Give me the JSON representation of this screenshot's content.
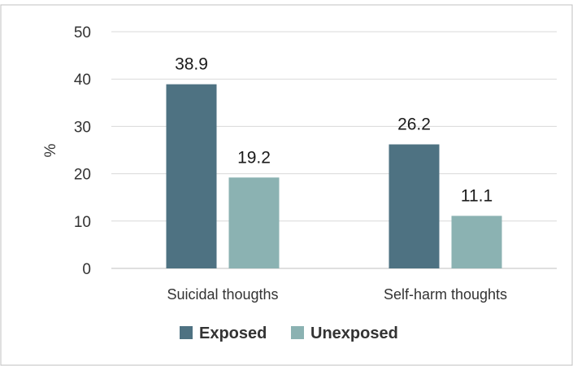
{
  "chart_data": {
    "type": "bar",
    "categories": [
      "Suicidal thougths",
      "Self-harm thoughts"
    ],
    "series": [
      {
        "name": "Exposed",
        "values": [
          38.9,
          26.2
        ],
        "color": "#4e7282"
      },
      {
        "name": "Unexposed",
        "values": [
          19.2,
          11.1
        ],
        "color": "#8bb2b2"
      }
    ],
    "data_labels": [
      [
        "38.9",
        "26.2"
      ],
      [
        "19.2",
        "11.1"
      ]
    ],
    "ylabel": "%",
    "ylim": [
      0,
      50
    ],
    "yticks": [
      0,
      10,
      20,
      30,
      40,
      50
    ],
    "grid": true,
    "legend": "bottom"
  }
}
